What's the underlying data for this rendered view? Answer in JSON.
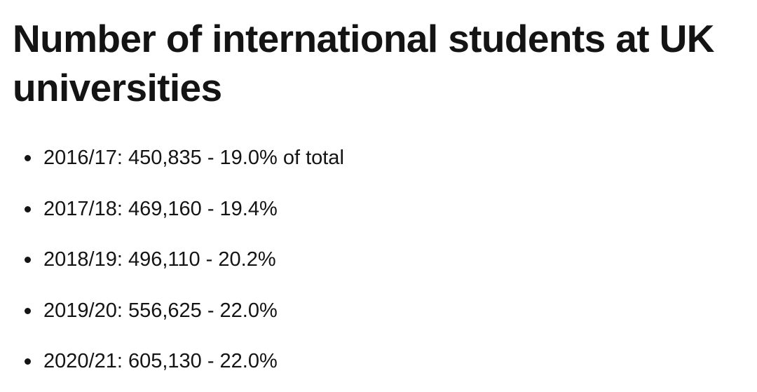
{
  "header": {
    "title": "Number of international students at UK universities"
  },
  "list": {
    "items": [
      "2016/17: 450,835 - 19.0% of total",
      "2017/18: 469,160 - 19.4%",
      "2018/19: 496,110 - 20.2%",
      "2019/20: 556,625 - 22.0%",
      "2020/21: 605,130 - 22.0%"
    ]
  }
}
